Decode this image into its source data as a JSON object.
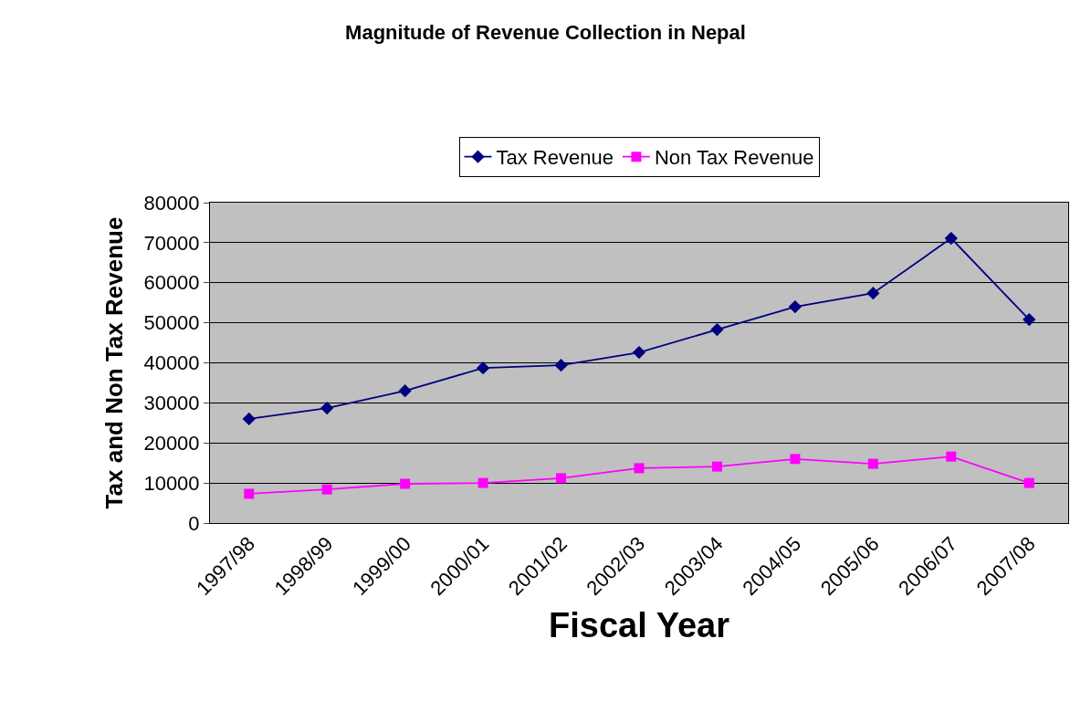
{
  "chart_data": {
    "type": "line",
    "title": "Magnitude of Revenue Collection in Nepal",
    "xlabel": "Fiscal Year",
    "ylabel": "Tax and Non Tax Revenue",
    "categories": [
      "1997/98",
      "1998/99",
      "1999/00",
      "2000/01",
      "2001/02",
      "2002/03",
      "2003/04",
      "2004/05",
      "2005/06",
      "2006/07",
      "2007/08"
    ],
    "series": [
      {
        "name": "Tax Revenue",
        "color": "#000080",
        "marker": "diamond",
        "values": [
          26000,
          28700,
          33000,
          38700,
          39400,
          42600,
          48300,
          54000,
          57400,
          71100,
          50800
        ]
      },
      {
        "name": "Non Tax Revenue",
        "color": "#ff00ff",
        "marker": "square",
        "values": [
          7300,
          8400,
          9800,
          10000,
          11200,
          13700,
          14100,
          16000,
          14800,
          16600,
          10000
        ]
      }
    ],
    "ylim": [
      0,
      80000
    ],
    "yticks": [
      0,
      10000,
      20000,
      30000,
      40000,
      50000,
      60000,
      70000,
      80000
    ],
    "grid": "y",
    "legend": "top",
    "line_style": "solid"
  }
}
